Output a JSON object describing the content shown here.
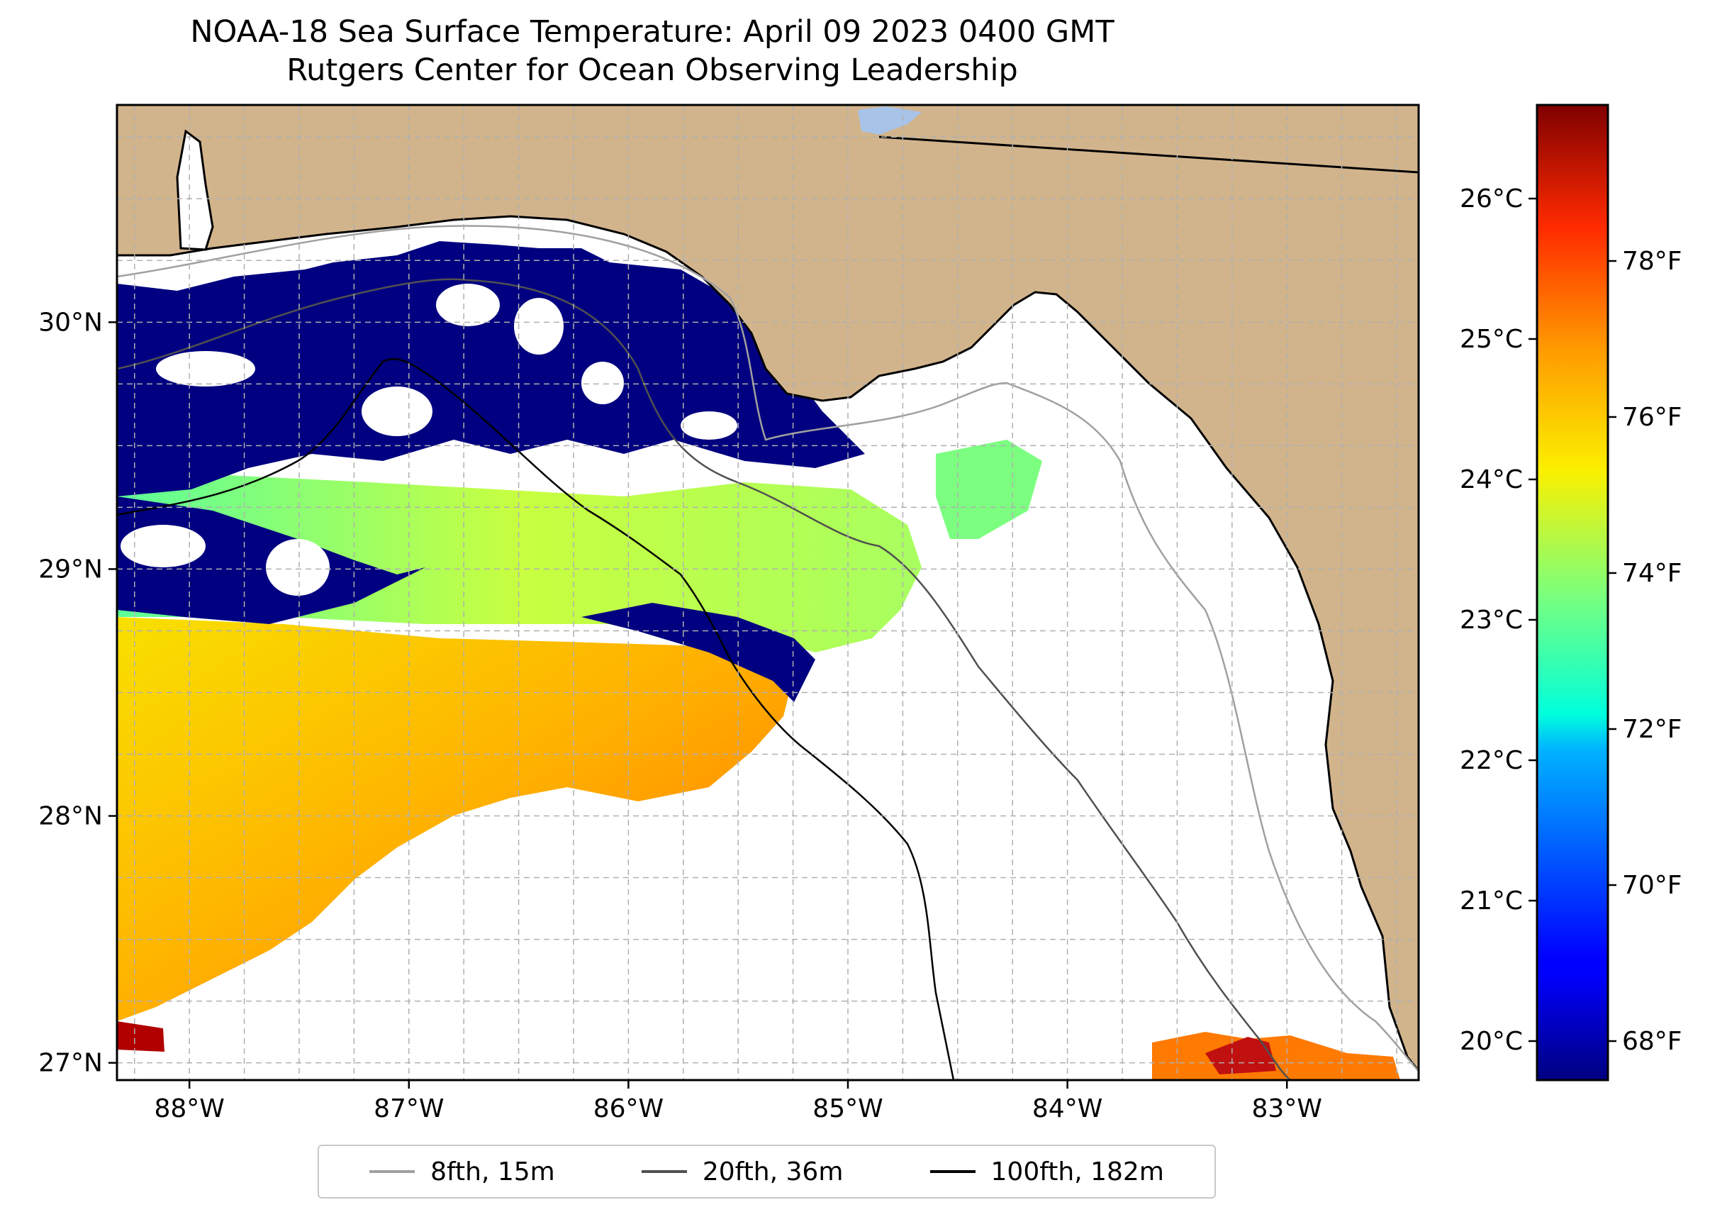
{
  "title": {
    "line1": "NOAA-18 Sea Surface Temperature: April 09 2023 0400 GMT",
    "line2": "Rutgers Center for Ocean Observing Leadership"
  },
  "map": {
    "lon_ticks": [
      {
        "value": -88,
        "label": "88°W"
      },
      {
        "value": -87,
        "label": "87°W"
      },
      {
        "value": -86,
        "label": "86°W"
      },
      {
        "value": -85,
        "label": "85°W"
      },
      {
        "value": -84,
        "label": "84°W"
      },
      {
        "value": -83,
        "label": "83°W"
      }
    ],
    "lat_ticks": [
      {
        "value": 30,
        "label": "30°N"
      },
      {
        "value": 29,
        "label": "29°N"
      },
      {
        "value": 28,
        "label": "28°N"
      },
      {
        "value": 27,
        "label": "27°N"
      }
    ],
    "lon_range": [
      -88.33,
      -82.4
    ],
    "lat_range": [
      26.93,
      30.88
    ],
    "colors": {
      "land": "#d2b48c",
      "ocean_no_data": "#ffffff",
      "cold_band": "#000080",
      "warm_band": "#f5c400",
      "hot_spot": "#a00000",
      "grid": "#b0b0b0"
    }
  },
  "colorbar": {
    "celsius_ticks": [
      {
        "value": 26,
        "label": "26°C"
      },
      {
        "value": 25,
        "label": "25°C"
      },
      {
        "value": 24,
        "label": "24°C"
      },
      {
        "value": 23,
        "label": "23°C"
      },
      {
        "value": 22,
        "label": "22°C"
      },
      {
        "value": 21,
        "label": "21°C"
      },
      {
        "value": 20,
        "label": "20°C"
      }
    ],
    "fahrenheit_ticks": [
      {
        "value": 78,
        "label": "78°F"
      },
      {
        "value": 76,
        "label": "76°F"
      },
      {
        "value": 74,
        "label": "74°F"
      },
      {
        "value": 72,
        "label": "72°F"
      },
      {
        "value": 70,
        "label": "70°F"
      },
      {
        "value": 68,
        "label": "68°F"
      }
    ],
    "range_f": [
      67.5,
      80.0
    ]
  },
  "legend": {
    "items": [
      {
        "label": "8fth, 15m",
        "color": "#a0a0a0"
      },
      {
        "label": "20fth, 36m",
        "color": "#505050"
      },
      {
        "label": "100fth, 182m",
        "color": "#000000"
      }
    ]
  }
}
